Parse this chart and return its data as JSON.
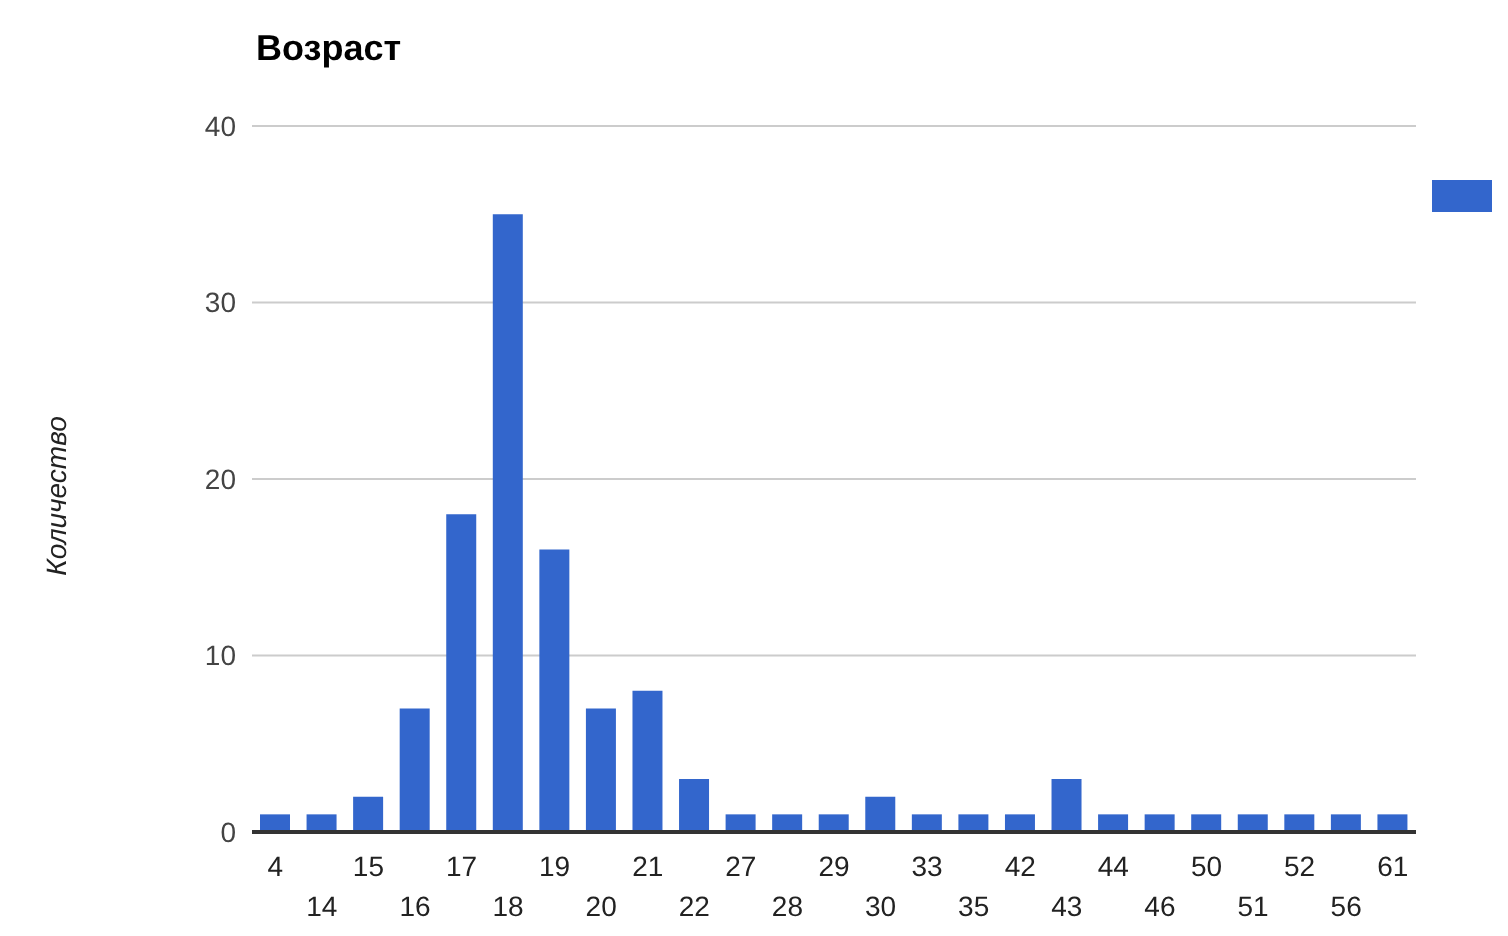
{
  "chart_data": {
    "type": "bar",
    "title": "Возраст",
    "ylabel": "Количество",
    "categories": [
      "4",
      "14",
      "15",
      "16",
      "17",
      "18",
      "19",
      "20",
      "21",
      "22",
      "27",
      "28",
      "29",
      "30",
      "33",
      "35",
      "42",
      "43",
      "44",
      "46",
      "50",
      "51",
      "52",
      "56",
      "61"
    ],
    "values": [
      1,
      1,
      2,
      7,
      18,
      35,
      16,
      7,
      8,
      3,
      1,
      1,
      1,
      2,
      1,
      1,
      1,
      3,
      1,
      1,
      1,
      1,
      1,
      1,
      1
    ],
    "color": "#3366cc",
    "ylim": [
      0,
      40
    ],
    "yticks": [
      0,
      10,
      20,
      30,
      40
    ],
    "grid": "y"
  }
}
